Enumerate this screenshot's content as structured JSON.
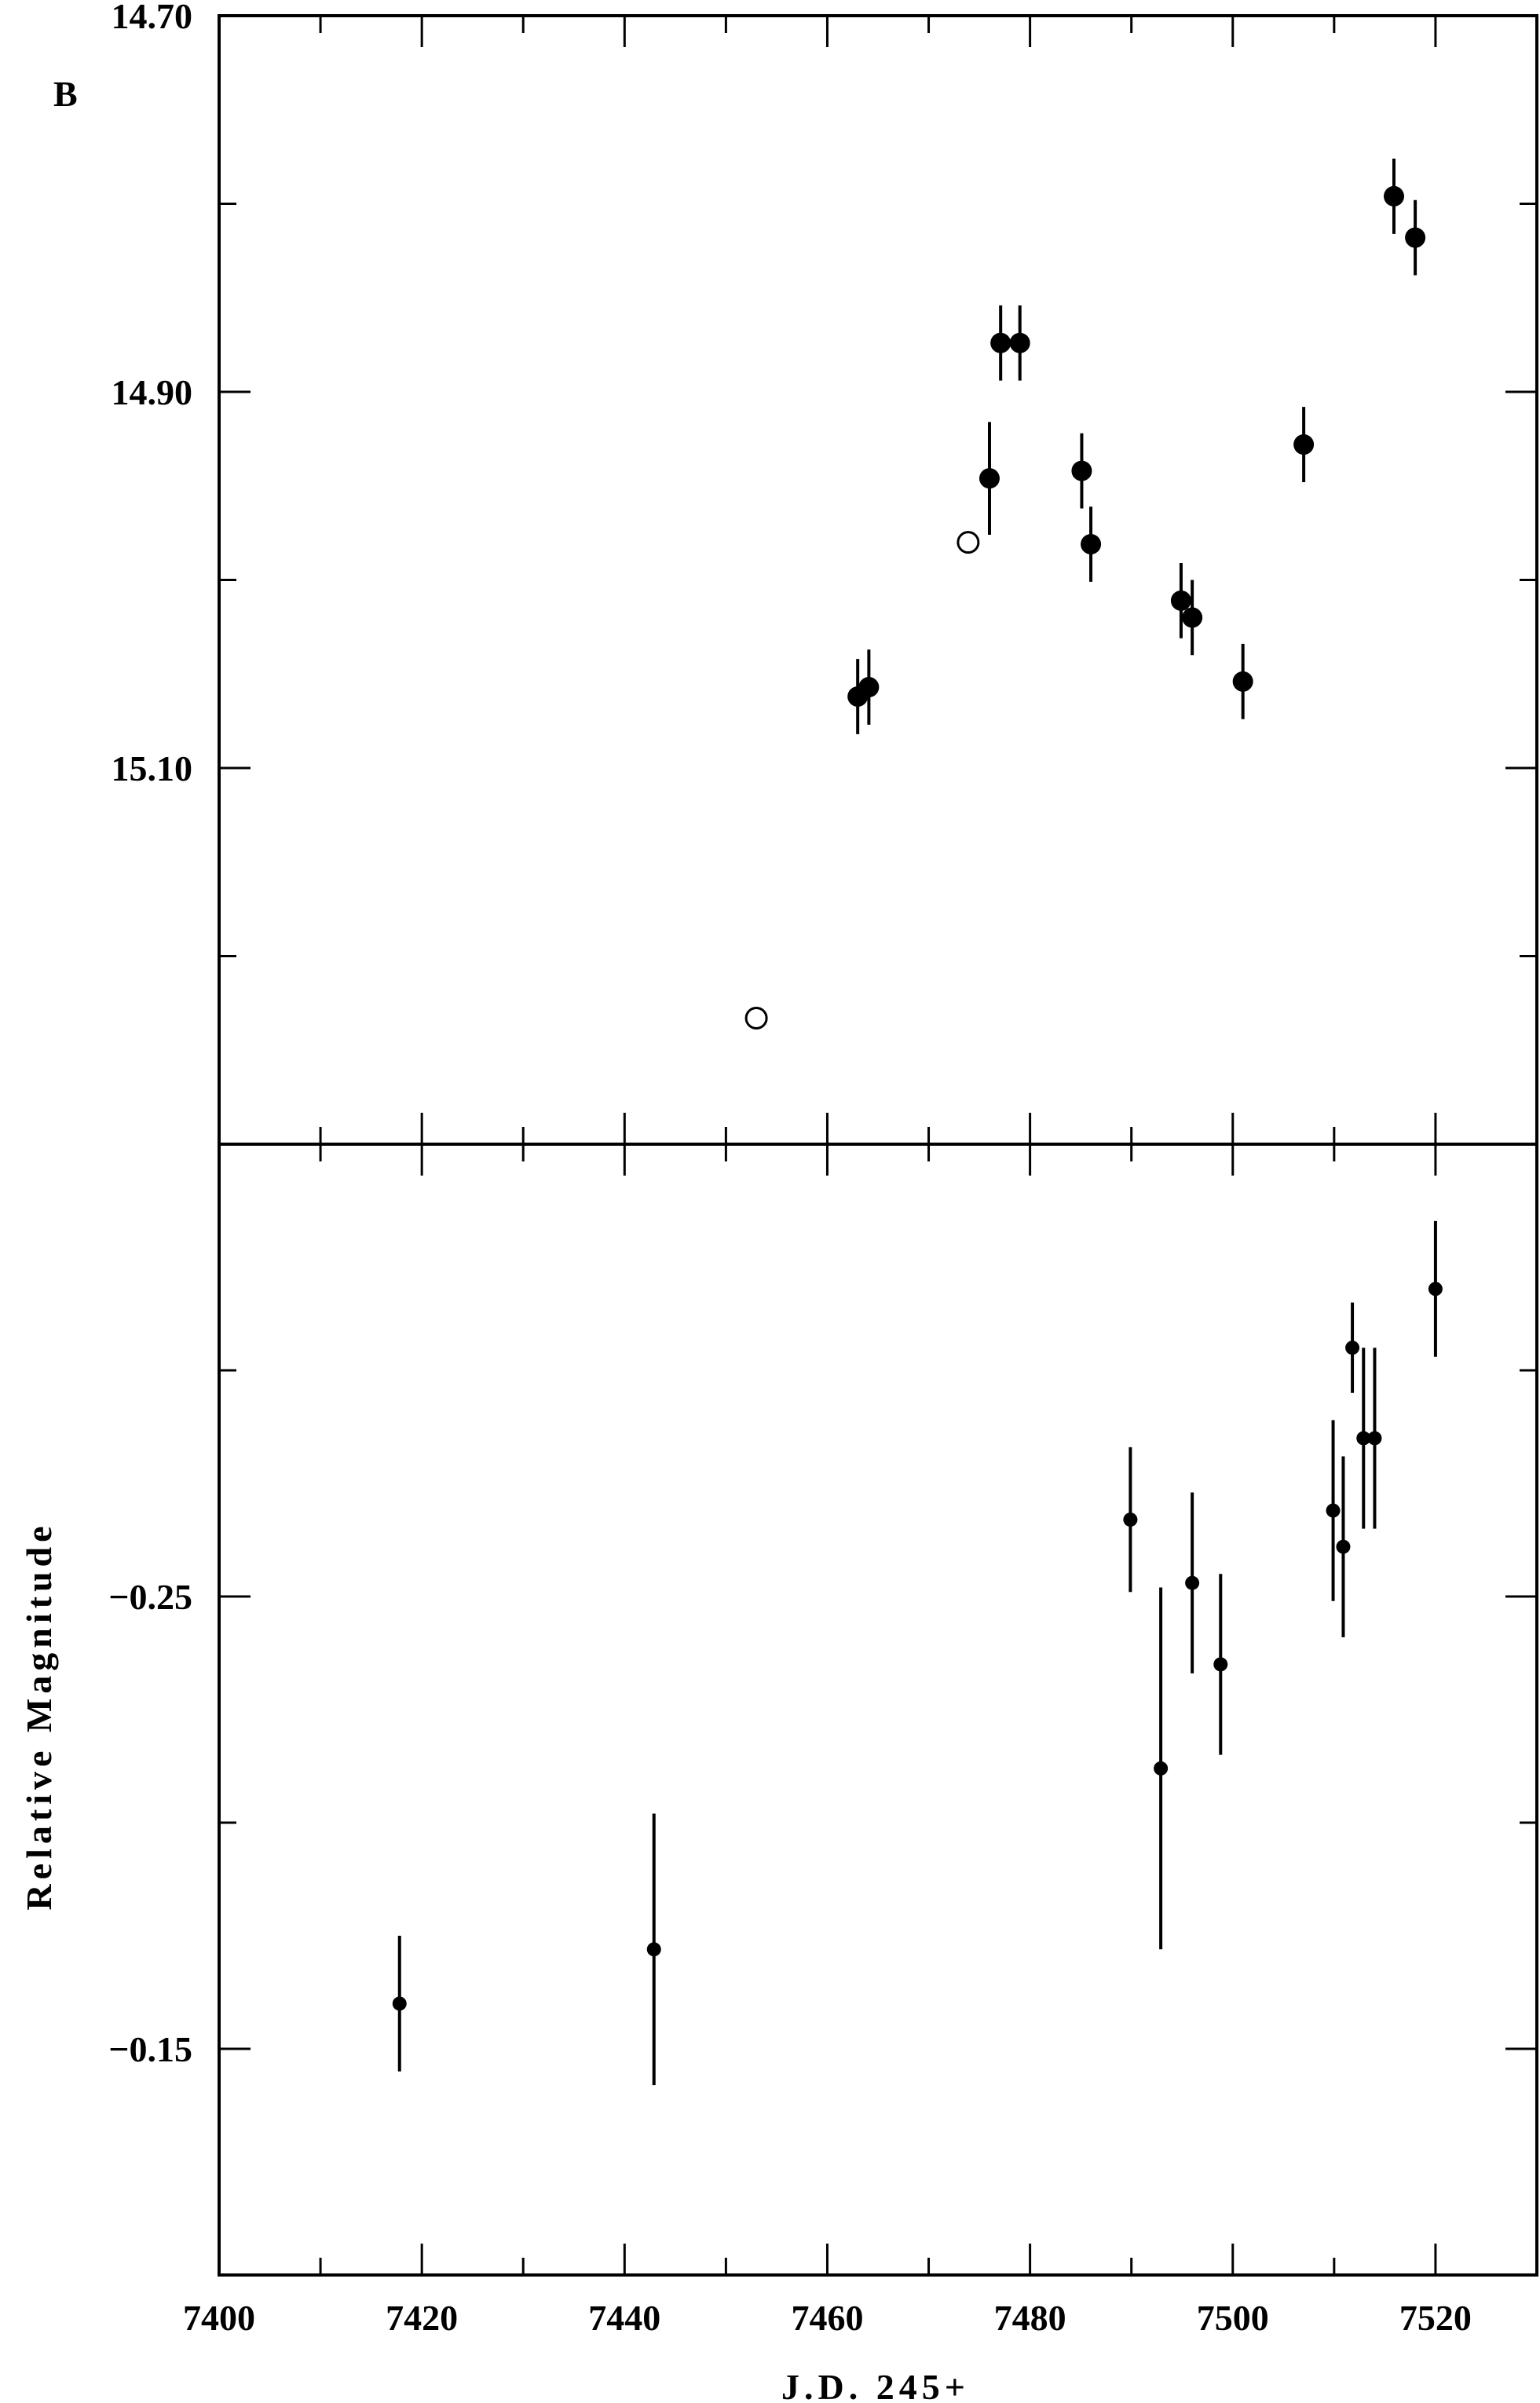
{
  "chart_data": [
    {
      "type": "scatter",
      "annotation": "B",
      "xlim": [
        7400,
        7530
      ],
      "xticks": [
        7400,
        7420,
        7440,
        7460,
        7480,
        7500,
        7520
      ],
      "xminorticks": [
        7410,
        7430,
        7450,
        7470,
        7490,
        7510,
        7530
      ],
      "ylim": [
        14.7,
        15.3
      ],
      "inverted_y": true,
      "yticks": [
        {
          "value": 14.7,
          "label": "14.70"
        },
        {
          "value": 14.9,
          "label": "14.90"
        },
        {
          "value": 15.1,
          "label": "15.10"
        }
      ],
      "yminorticks": [
        14.8,
        15.0,
        15.2
      ],
      "series": [
        {
          "marker": "filled",
          "color": "#000000",
          "x": [
            7463.0,
            7464.1,
            7476.0,
            7477.1,
            7479.0,
            7485.1,
            7486.0,
            7494.9,
            7496.0,
            7501.0,
            7507.0,
            7515.9,
            7518.0
          ],
          "values": [
            15.062,
            15.057,
            14.946,
            14.874,
            14.874,
            14.942,
            14.981,
            15.011,
            15.02,
            15.054,
            14.928,
            14.796,
            14.818
          ],
          "errors": [
            0.02,
            0.02,
            0.03,
            0.02,
            0.02,
            0.02,
            0.02,
            0.02,
            0.02,
            0.02,
            0.02,
            0.02,
            0.02
          ]
        },
        {
          "marker": "open",
          "color": "#000000",
          "x": [
            7473.9,
            7453.0
          ],
          "values": [
            14.98,
            15.233
          ]
        }
      ]
    },
    {
      "type": "scatter",
      "xlabel": "J.D. 245+",
      "ylabel": "Relative Magnitude",
      "xlim": [
        7400,
        7530
      ],
      "xticks": [
        7400,
        7420,
        7440,
        7460,
        7480,
        7500,
        7520
      ],
      "xminorticks": [
        7410,
        7430,
        7450,
        7470,
        7490,
        7510,
        7530
      ],
      "ylim": [
        -0.35,
        -0.1
      ],
      "inverted_y": true,
      "yticks": [
        {
          "value": -0.25,
          "label": "−0.25"
        },
        {
          "value": -0.15,
          "label": "−0.15"
        }
      ],
      "yminorticks": [
        -0.3,
        -0.2
      ],
      "series": [
        {
          "marker": "small",
          "color": "#000000",
          "x": [
            7417.8,
            7442.9,
            7489.9,
            7492.9,
            7496.0,
            7498.8,
            7509.9,
            7510.9,
            7511.8,
            7512.9,
            7514.0,
            7520.0
          ],
          "values": [
            -0.16,
            -0.172,
            -0.267,
            -0.212,
            -0.253,
            -0.235,
            -0.269,
            -0.261,
            -0.305,
            -0.285,
            -0.285,
            -0.318
          ],
          "errors": [
            0.015,
            0.03,
            0.016,
            0.04,
            0.02,
            0.02,
            0.02,
            0.02,
            0.01,
            0.02,
            0.02,
            0.015
          ]
        }
      ]
    }
  ]
}
